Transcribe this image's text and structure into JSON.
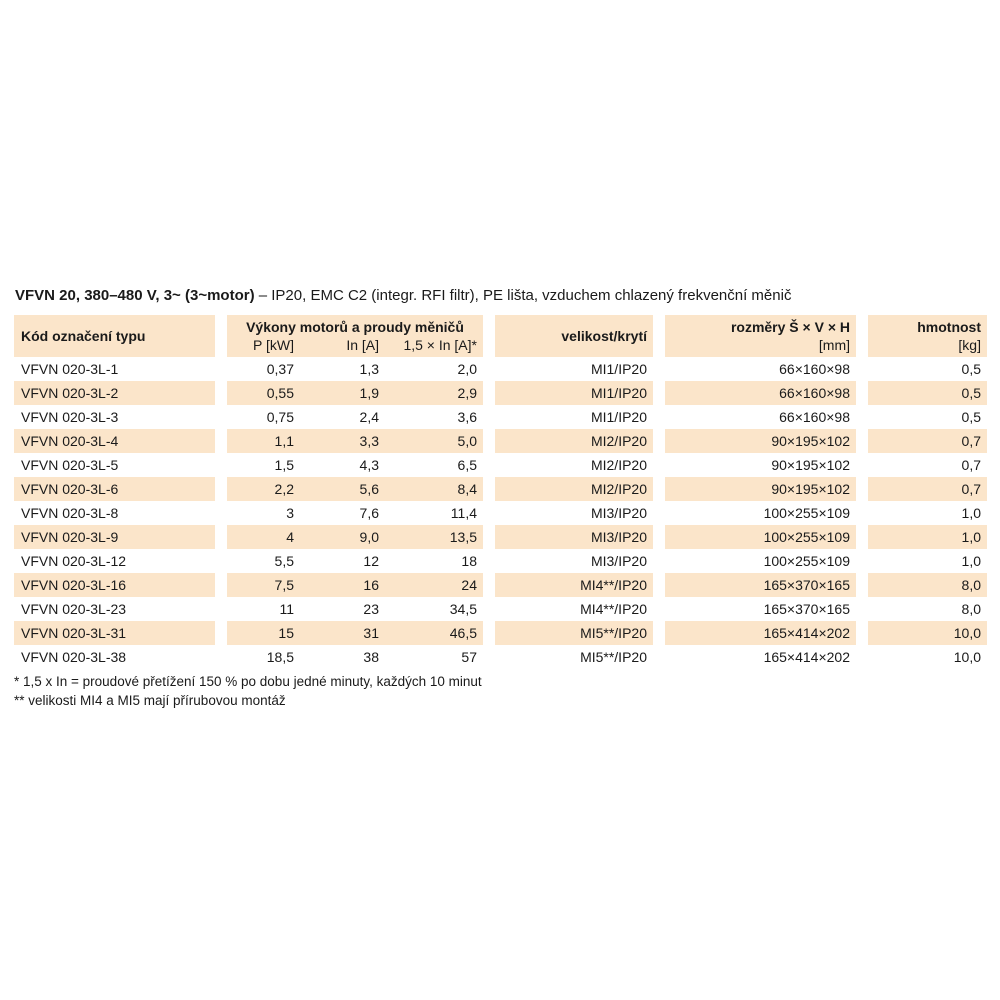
{
  "title": {
    "bold": "VFVN 20, 380–480 V, 3~ (3~motor)",
    "rest": "– IP20, EMC C2 (integr. RFI filtr), PE lišta, vzduchem chlazený frekvenční měnič"
  },
  "table": {
    "col1_header": "Kód označení typu",
    "group_header": "Výkony motorů a proudy měničů",
    "sub_headers": [
      "P [kW]",
      "In [A]",
      "1,5 × In [A]*"
    ],
    "col3_header": "velikost/krytí",
    "col4_header": "rozměry Š × V × H",
    "col4_unit": "[mm]",
    "col5_header": "hmotnost",
    "col5_unit": "[kg]",
    "rows": [
      {
        "code": "VFVN 020-3L-1",
        "p": "0,37",
        "in": "1,3",
        "in15": "2,0",
        "size": "MI1/IP20",
        "dim": "66×160×98",
        "kg": "0,5"
      },
      {
        "code": "VFVN 020-3L-2",
        "p": "0,55",
        "in": "1,9",
        "in15": "2,9",
        "size": "MI1/IP20",
        "dim": "66×160×98",
        "kg": "0,5"
      },
      {
        "code": "VFVN 020-3L-3",
        "p": "0,75",
        "in": "2,4",
        "in15": "3,6",
        "size": "MI1/IP20",
        "dim": "66×160×98",
        "kg": "0,5"
      },
      {
        "code": "VFVN 020-3L-4",
        "p": "1,1",
        "in": "3,3",
        "in15": "5,0",
        "size": "MI2/IP20",
        "dim": "90×195×102",
        "kg": "0,7"
      },
      {
        "code": "VFVN 020-3L-5",
        "p": "1,5",
        "in": "4,3",
        "in15": "6,5",
        "size": "MI2/IP20",
        "dim": "90×195×102",
        "kg": "0,7"
      },
      {
        "code": "VFVN 020-3L-6",
        "p": "2,2",
        "in": "5,6",
        "in15": "8,4",
        "size": "MI2/IP20",
        "dim": "90×195×102",
        "kg": "0,7"
      },
      {
        "code": "VFVN 020-3L-8",
        "p": "3",
        "in": "7,6",
        "in15": "11,4",
        "size": "MI3/IP20",
        "dim": "100×255×109",
        "kg": "1,0"
      },
      {
        "code": "VFVN 020-3L-9",
        "p": "4",
        "in": "9,0",
        "in15": "13,5",
        "size": "MI3/IP20",
        "dim": "100×255×109",
        "kg": "1,0"
      },
      {
        "code": "VFVN 020-3L-12",
        "p": "5,5",
        "in": "12",
        "in15": "18",
        "size": "MI3/IP20",
        "dim": "100×255×109",
        "kg": "1,0"
      },
      {
        "code": "VFVN 020-3L-16",
        "p": "7,5",
        "in": "16",
        "in15": "24",
        "size": "MI4**/IP20",
        "dim": "165×370×165",
        "kg": "8,0"
      },
      {
        "code": "VFVN 020-3L-23",
        "p": "11",
        "in": "23",
        "in15": "34,5",
        "size": "MI4**/IP20",
        "dim": "165×370×165",
        "kg": "8,0"
      },
      {
        "code": "VFVN 020-3L-31",
        "p": "15",
        "in": "31",
        "in15": "46,5",
        "size": "MI5**/IP20",
        "dim": "165×414×202",
        "kg": "10,0"
      },
      {
        "code": "VFVN 020-3L-38",
        "p": "18,5",
        "in": "38",
        "in15": "57",
        "size": "MI5**/IP20",
        "dim": "165×414×202",
        "kg": "10,0"
      }
    ]
  },
  "footnotes": [
    "* 1,5 x In = proudové přetížení 150 % po dobu jedné minuty, každých 10 minut",
    "** velikosti MI4 a MI5 mají přírubovou montáž"
  ],
  "colors": {
    "row_accent": "#fbe5ca",
    "text": "#1a1a1a"
  }
}
